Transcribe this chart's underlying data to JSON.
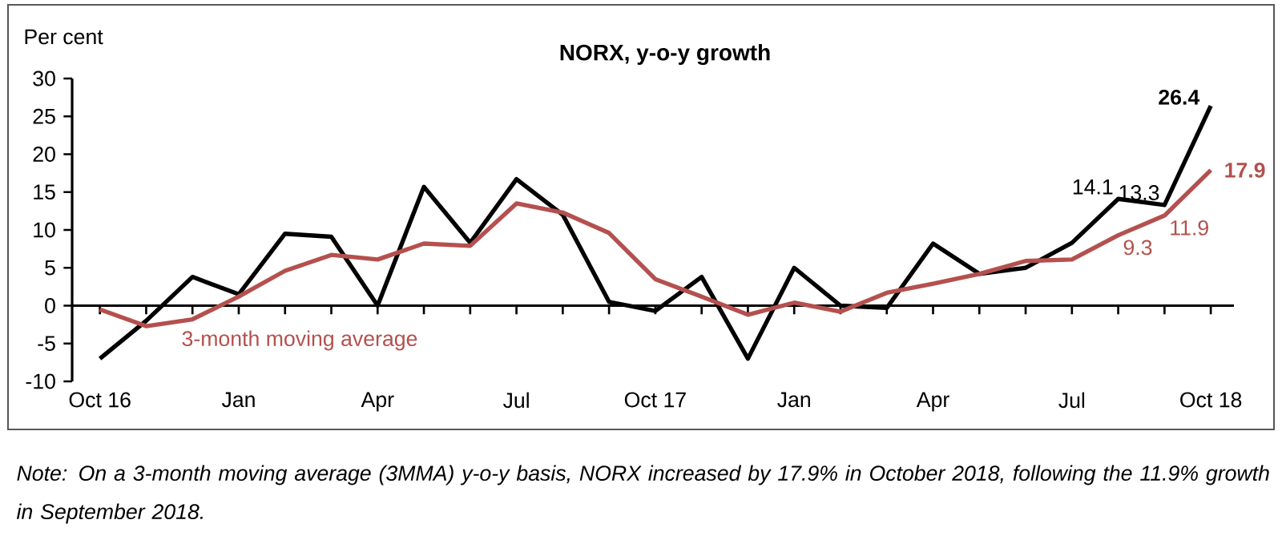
{
  "chart_data": {
    "type": "line",
    "title": "NORX, y-o-y growth",
    "ylabel": "Per cent",
    "annotations": [
      "Note: On a 3-month moving average (3MMA) y-o-y basis, NORX increased by 17.9% in October 2018, following the 11.9% growth in September 2018."
    ],
    "categories": [
      "Oct 16",
      null,
      null,
      "Jan",
      null,
      null,
      "Apr",
      null,
      null,
      "Jul",
      null,
      null,
      "Oct 17",
      null,
      null,
      "Jan",
      null,
      null,
      "Apr",
      null,
      null,
      "Jul",
      null,
      null,
      "Oct 18"
    ],
    "series": [
      {
        "color": "#000000",
        "values": [
          -7,
          -2,
          3.8,
          1.5,
          9.5,
          9.1,
          0,
          15.7,
          8.3,
          16.7,
          12,
          0.5,
          -0.7,
          3.8,
          -7,
          5,
          0,
          -0.3,
          8.2,
          4.2,
          5,
          8.3,
          14.1,
          13.3,
          26.4
        ],
        "value_labels": [
          null,
          null,
          null,
          null,
          null,
          null,
          null,
          null,
          null,
          null,
          null,
          null,
          null,
          null,
          null,
          null,
          null,
          null,
          null,
          null,
          null,
          null,
          "14.1",
          "13.3",
          "26.4"
        ]
      },
      {
        "name": "3-month moving average",
        "color": "#b4504e",
        "values": [
          -0.5,
          -2.7,
          -1.8,
          1.2,
          4.6,
          6.7,
          6.1,
          8.2,
          7.9,
          13.5,
          12.3,
          9.6,
          3.5,
          1.2,
          -1.2,
          0.4,
          -0.8,
          1.7,
          2.9,
          4.2,
          5.9,
          6.1,
          9.3,
          11.9,
          17.9
        ],
        "value_labels": [
          null,
          null,
          null,
          null,
          null,
          null,
          null,
          null,
          null,
          null,
          null,
          null,
          null,
          null,
          null,
          null,
          null,
          null,
          null,
          null,
          null,
          null,
          "9.3",
          "11.9",
          "17.9"
        ]
      }
    ],
    "ylim": [
      -10,
      30
    ],
    "yticks": [
      -10,
      -5,
      0,
      5,
      10,
      15,
      20,
      25,
      30
    ]
  }
}
